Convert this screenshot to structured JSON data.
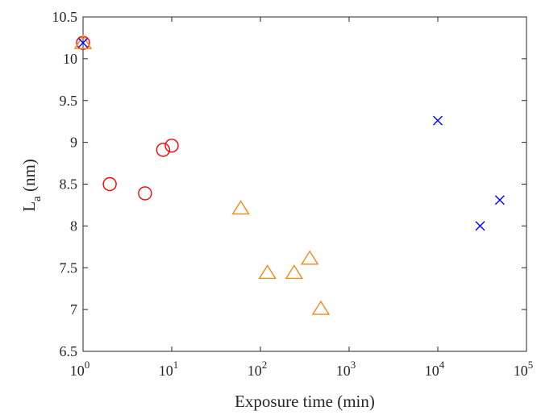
{
  "chart_data": {
    "type": "scatter",
    "xlabel": "Exposure time (min)",
    "ylabel": "L",
    "ylabel_sub": "a",
    "ylabel_unit": " (nm)",
    "xscale": "log",
    "xlim": [
      1,
      100000
    ],
    "ylim": [
      6.5,
      10.5
    ],
    "grid": false,
    "x_ticks": [
      1,
      10,
      100,
      1000,
      10000,
      100000
    ],
    "x_tick_exponents": [
      "0",
      "1",
      "2",
      "3",
      "4",
      "5"
    ],
    "y_ticks": [
      6.5,
      7,
      7.5,
      8,
      8.5,
      9,
      9.5,
      10,
      10.5
    ],
    "y_tick_labels": [
      "6.5",
      "7",
      "7.5",
      "8",
      "8.5",
      "9",
      "9.5",
      "10",
      "10.5"
    ],
    "series": [
      {
        "marker": "circle",
        "color": "#ff0000",
        "points": [
          {
            "x": 1,
            "y": 10.19
          },
          {
            "x": 2,
            "y": 8.5
          },
          {
            "x": 5,
            "y": 8.39
          },
          {
            "x": 8,
            "y": 8.91
          },
          {
            "x": 10,
            "y": 8.96
          }
        ]
      },
      {
        "marker": "triangle",
        "color": "#f08a1c",
        "points": [
          {
            "x": 1,
            "y": 10.19
          },
          {
            "x": 60,
            "y": 8.21
          },
          {
            "x": 120,
            "y": 7.44
          },
          {
            "x": 240,
            "y": 7.44
          },
          {
            "x": 360,
            "y": 7.61
          },
          {
            "x": 480,
            "y": 7.01
          }
        ]
      },
      {
        "marker": "cross",
        "color": "#0000ff",
        "points": [
          {
            "x": 1,
            "y": 10.19
          },
          {
            "x": 10000,
            "y": 9.26
          },
          {
            "x": 30000,
            "y": 8.0
          },
          {
            "x": 50000,
            "y": 8.31
          }
        ]
      }
    ]
  }
}
